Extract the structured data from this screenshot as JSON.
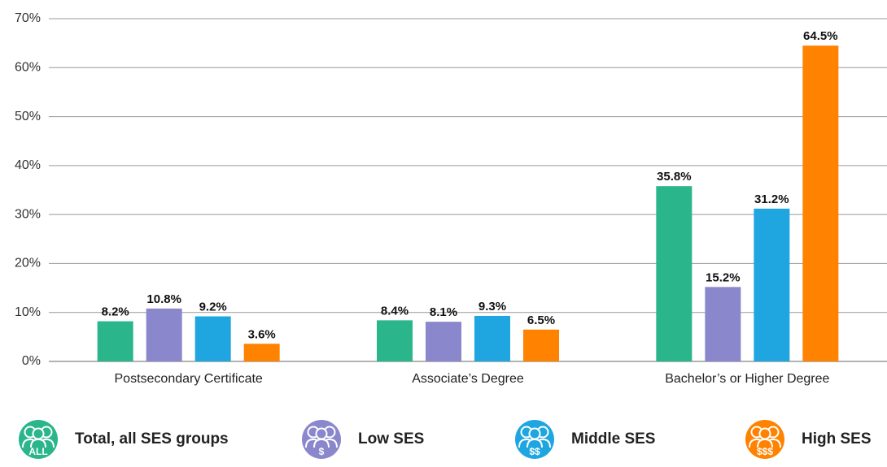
{
  "chart_data": {
    "type": "bar",
    "categories": [
      "Postsecondary Certificate",
      "Associate’s Degree",
      "Bachelor’s or Higher Degree"
    ],
    "series": [
      {
        "name": "Total, all SES groups",
        "icon_label": "ALL",
        "color": "#2bb58a",
        "values": [
          8.2,
          8.4,
          35.8
        ],
        "value_labels": [
          "8.2%",
          "8.4%",
          "35.8%"
        ]
      },
      {
        "name": "Low SES",
        "icon_label": "$",
        "color": "#8a87cc",
        "values": [
          10.8,
          8.1,
          15.2
        ],
        "value_labels": [
          "10.8%",
          "8.1%",
          "15.2%"
        ]
      },
      {
        "name": "Middle SES",
        "icon_label": "$$",
        "color": "#1fa6e0",
        "values": [
          9.2,
          9.3,
          31.2
        ],
        "value_labels": [
          "9.2%",
          "9.3%",
          "31.2%"
        ]
      },
      {
        "name": "High SES",
        "icon_label": "$$$",
        "color": "#ff8200",
        "values": [
          3.6,
          6.5,
          64.5
        ],
        "value_labels": [
          "3.6%",
          "6.5%",
          "64.5%"
        ]
      }
    ],
    "ylim": [
      0,
      70
    ],
    "yticks": [
      {
        "value": 0,
        "label": "0%"
      },
      {
        "value": 10,
        "label": "10%"
      },
      {
        "value": 20,
        "label": "20%"
      },
      {
        "value": 30,
        "label": "30%"
      },
      {
        "value": 40,
        "label": "40%"
      },
      {
        "value": 50,
        "label": "50%"
      },
      {
        "value": 60,
        "label": "60%"
      },
      {
        "value": 70,
        "label": "70%"
      }
    ],
    "grid": true,
    "legend": "bottom"
  }
}
